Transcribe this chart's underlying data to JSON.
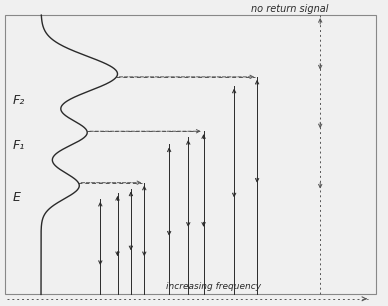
{
  "background_color": "#f0f0f0",
  "curve_color": "#2a2a2a",
  "line_color": "#2a2a2a",
  "dashed_color": "#555555",
  "text_color": "#2a2a2a",
  "layer_labels": [
    "E",
    "F₁",
    "F₂"
  ],
  "no_return_text": "no return signal",
  "increasing_freq_text": "increasing frequency",
  "figsize": [
    3.88,
    3.06
  ],
  "dpi": 100,
  "xlim": [
    0,
    10
  ],
  "ylim": [
    0,
    10
  ]
}
